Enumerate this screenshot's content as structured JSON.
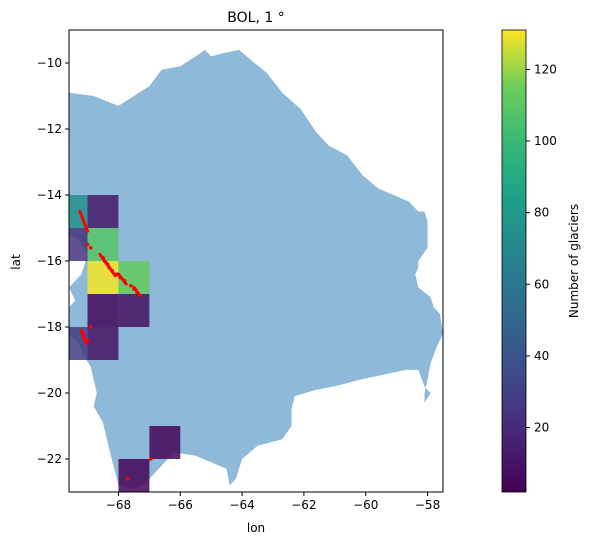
{
  "chart_data": {
    "type": "heatmap",
    "title": "BOL, 1 °",
    "xlabel": "lon",
    "ylabel": "lat",
    "xlim": [
      -69.6,
      -57.5
    ],
    "ylim": [
      -23.0,
      -9.0
    ],
    "xticks": [
      -68,
      -66,
      -64,
      -62,
      -60,
      -58
    ],
    "yticks": [
      -10,
      -12,
      -14,
      -16,
      -18,
      -20,
      -22
    ],
    "grid": false,
    "colorbar": {
      "label": "Number of glaciers",
      "range": [
        2,
        131
      ],
      "ticks": [
        20,
        40,
        60,
        80,
        100,
        120
      ],
      "colormap": "viridis"
    },
    "country_outline": [
      [
        -69.6,
        -10.9
      ],
      [
        -68.8,
        -11.0
      ],
      [
        -68.0,
        -11.3
      ],
      [
        -67.5,
        -11.0
      ],
      [
        -67.0,
        -10.7
      ],
      [
        -66.6,
        -10.2
      ],
      [
        -66.0,
        -10.1
      ],
      [
        -65.5,
        -9.8
      ],
      [
        -65.2,
        -9.6
      ],
      [
        -65.0,
        -9.8
      ],
      [
        -64.6,
        -9.7
      ],
      [
        -64.1,
        -9.6
      ],
      [
        -63.6,
        -10.0
      ],
      [
        -63.2,
        -10.3
      ],
      [
        -62.7,
        -10.9
      ],
      [
        -62.1,
        -11.4
      ],
      [
        -61.6,
        -12.1
      ],
      [
        -61.2,
        -12.5
      ],
      [
        -60.6,
        -12.8
      ],
      [
        -60.1,
        -13.4
      ],
      [
        -59.6,
        -13.8
      ],
      [
        -59.1,
        -14.0
      ],
      [
        -58.6,
        -14.2
      ],
      [
        -58.3,
        -14.5
      ],
      [
        -58.1,
        -14.5
      ],
      [
        -58.0,
        -14.8
      ],
      [
        -58.0,
        -15.6
      ],
      [
        -58.3,
        -16.0
      ],
      [
        -58.3,
        -16.2
      ],
      [
        -58.4,
        -16.4
      ],
      [
        -58.3,
        -16.8
      ],
      [
        -57.9,
        -17.1
      ],
      [
        -57.8,
        -17.4
      ],
      [
        -57.6,
        -17.6
      ],
      [
        -57.5,
        -18.2
      ],
      [
        -57.7,
        -18.6
      ],
      [
        -57.9,
        -19.1
      ],
      [
        -58.0,
        -19.6
      ],
      [
        -58.1,
        -20.0
      ],
      [
        -58.1,
        -20.3
      ],
      [
        -57.9,
        -20.0
      ],
      [
        -58.1,
        -19.8
      ],
      [
        -58.3,
        -19.3
      ],
      [
        -58.7,
        -19.3
      ],
      [
        -59.2,
        -19.4
      ],
      [
        -60.2,
        -19.6
      ],
      [
        -61.0,
        -19.8
      ],
      [
        -61.6,
        -19.9
      ],
      [
        -62.3,
        -20.1
      ],
      [
        -62.4,
        -20.5
      ],
      [
        -62.4,
        -21.0
      ],
      [
        -62.7,
        -21.4
      ],
      [
        -63.5,
        -21.6
      ],
      [
        -64.0,
        -22.0
      ],
      [
        -64.2,
        -22.6
      ],
      [
        -64.4,
        -22.8
      ],
      [
        -64.5,
        -22.3
      ],
      [
        -65.0,
        -22.1
      ],
      [
        -65.5,
        -21.9
      ],
      [
        -66.2,
        -21.8
      ],
      [
        -66.5,
        -22.1
      ],
      [
        -67.0,
        -22.6
      ],
      [
        -67.2,
        -22.8
      ],
      [
        -67.6,
        -22.9
      ],
      [
        -68.0,
        -22.8
      ],
      [
        -68.3,
        -21.7
      ],
      [
        -68.5,
        -20.9
      ],
      [
        -68.8,
        -20.4
      ],
      [
        -68.7,
        -20.0
      ],
      [
        -68.8,
        -19.6
      ],
      [
        -68.9,
        -19.2
      ],
      [
        -69.1,
        -18.9
      ],
      [
        -69.3,
        -18.5
      ],
      [
        -69.6,
        -18.2
      ],
      [
        -69.6,
        -17.4
      ],
      [
        -69.4,
        -17.2
      ],
      [
        -69.6,
        -16.8
      ],
      [
        -69.2,
        -16.4
      ],
      [
        -69.0,
        -15.8
      ],
      [
        -69.3,
        -15.3
      ],
      [
        -69.6,
        -15.2
      ],
      [
        -69.6,
        -10.9
      ]
    ],
    "cells": [
      {
        "lon": -70,
        "lat": -15,
        "value": 75
      },
      {
        "lon": -69,
        "lat": -15,
        "value": 12
      },
      {
        "lon": -70,
        "lat": -16,
        "value": 24
      },
      {
        "lon": -69,
        "lat": -16,
        "value": 108
      },
      {
        "lon": -69,
        "lat": -17,
        "value": 130
      },
      {
        "lon": -68,
        "lat": -17,
        "value": 112
      },
      {
        "lon": -69,
        "lat": -18,
        "value": 5
      },
      {
        "lon": -68,
        "lat": -18,
        "value": 8
      },
      {
        "lon": -70,
        "lat": -19,
        "value": 28
      },
      {
        "lon": -69,
        "lat": -19,
        "value": 9
      },
      {
        "lon": -67,
        "lat": -22,
        "value": 4
      },
      {
        "lon": -68,
        "lat": -23,
        "value": 3
      }
    ],
    "glacier_points": [
      [
        -69.0,
        -15.5
      ],
      [
        -68.9,
        -15.6
      ],
      [
        -68.5,
        -15.9
      ],
      [
        -68.45,
        -16.0
      ],
      [
        -68.4,
        -16.05
      ],
      [
        -68.35,
        -16.1
      ],
      [
        -68.3,
        -16.2
      ],
      [
        -68.2,
        -16.3
      ],
      [
        -68.05,
        -16.4
      ],
      [
        -67.95,
        -16.5
      ],
      [
        -67.8,
        -16.6
      ],
      [
        -67.6,
        -16.75
      ],
      [
        -67.5,
        -16.85
      ],
      [
        -67.4,
        -16.95
      ],
      [
        -69.15,
        -18.2
      ],
      [
        -69.0,
        -18.4
      ],
      [
        -68.9,
        -18.0
      ],
      [
        -66.95,
        -22.0
      ],
      [
        -67.7,
        -22.6
      ]
    ],
    "glacier_segments": [
      [
        [
          -69.25,
          -14.5
        ],
        [
          -69.0,
          -15.1
        ]
      ],
      [
        [
          -68.6,
          -15.8
        ],
        [
          -68.1,
          -16.45
        ]
      ],
      [
        [
          -68.0,
          -16.4
        ],
        [
          -67.75,
          -16.7
        ]
      ],
      [
        [
          -67.5,
          -16.8
        ],
        [
          -67.3,
          -17.05
        ]
      ],
      [
        [
          -69.2,
          -18.1
        ],
        [
          -69.05,
          -18.5
        ]
      ]
    ]
  }
}
